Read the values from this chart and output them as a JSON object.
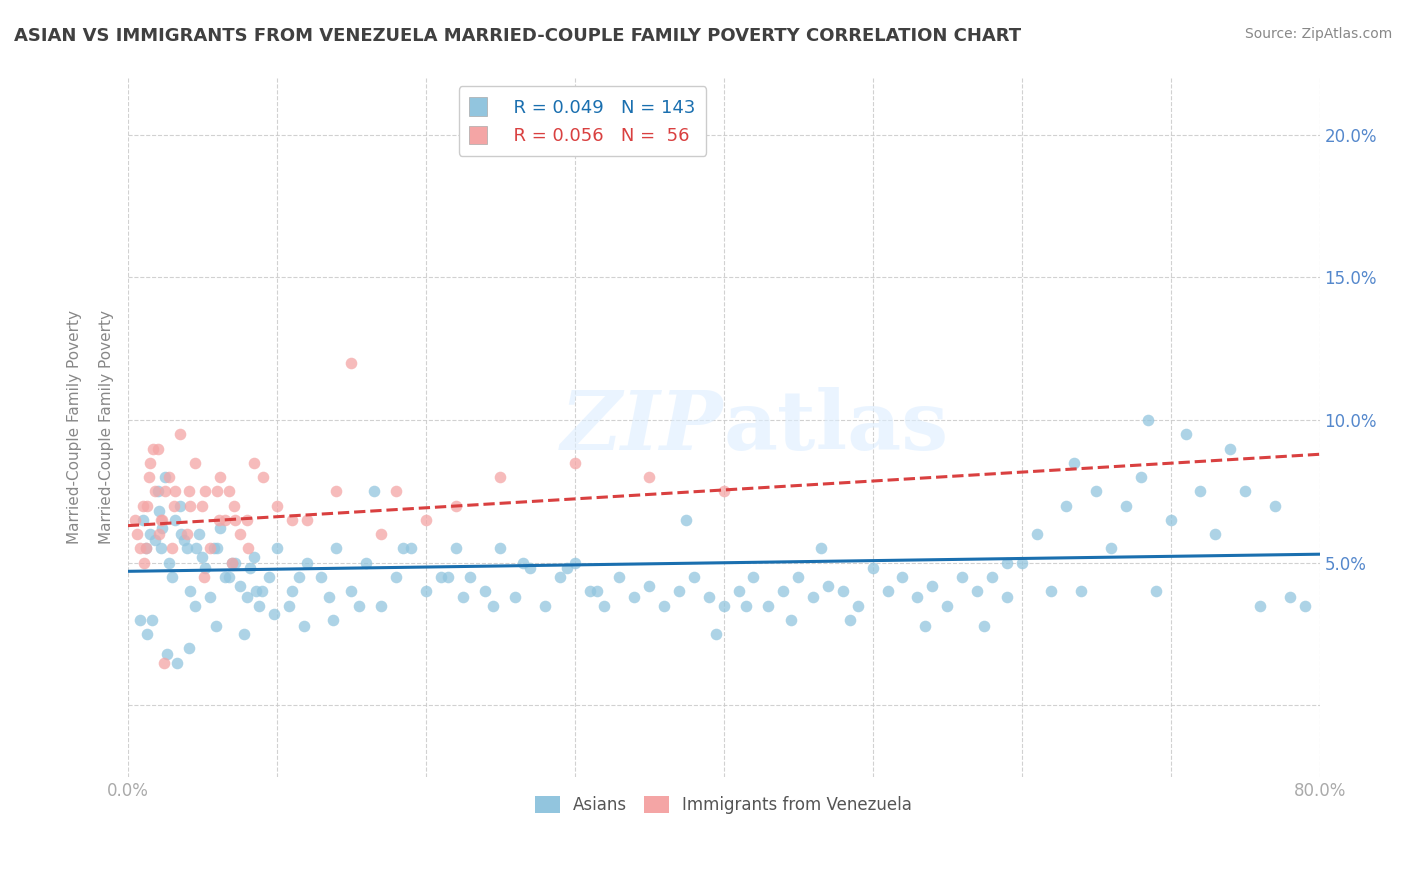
{
  "title": "ASIAN VS IMMIGRANTS FROM VENEZUELA MARRIED-COUPLE FAMILY POVERTY CORRELATION CHART",
  "source": "Source: ZipAtlas.com",
  "ylabel": "Married-Couple Family Poverty",
  "xlim": [
    0.0,
    80.0
  ],
  "ylim": [
    -2.5,
    22.0
  ],
  "yticks": [
    0.0,
    5.0,
    10.0,
    15.0,
    20.0
  ],
  "ytick_labels": [
    "",
    "5.0%",
    "10.0%",
    "15.0%",
    "20.0%"
  ],
  "xticks": [
    0.0,
    10.0,
    20.0,
    30.0,
    40.0,
    50.0,
    60.0,
    70.0,
    80.0
  ],
  "xtick_labels": [
    "0.0%",
    "",
    "",
    "",
    "",
    "",
    "",
    "",
    "80.0%"
  ],
  "legend_r1": "R = 0.049",
  "legend_n1": "N = 143",
  "legend_r2": "R = 0.056",
  "legend_n2": "N =  56",
  "blue_color": "#92c5de",
  "pink_color": "#f4a5a5",
  "trend_blue": "#1a6faf",
  "trend_pink": "#d94040",
  "title_color": "#404040",
  "background_color": "#ffffff",
  "grid_color": "#cccccc",
  "blue_scatter_x": [
    1.0,
    1.2,
    1.5,
    1.8,
    2.0,
    2.3,
    2.5,
    2.8,
    3.0,
    3.2,
    3.5,
    4.0,
    4.2,
    4.5,
    4.8,
    5.0,
    5.2,
    5.5,
    6.0,
    6.5,
    7.0,
    7.5,
    8.0,
    8.5,
    9.0,
    10.0,
    11.0,
    12.0,
    13.0,
    14.0,
    15.0,
    16.0,
    17.0,
    18.0,
    19.0,
    20.0,
    21.0,
    22.0,
    23.0,
    24.0,
    25.0,
    26.0,
    27.0,
    28.0,
    29.0,
    30.0,
    31.0,
    32.0,
    33.0,
    34.0,
    35.0,
    36.0,
    37.0,
    38.0,
    39.0,
    40.0,
    41.0,
    42.0,
    43.0,
    44.0,
    45.0,
    46.0,
    47.0,
    48.0,
    49.0,
    50.0,
    51.0,
    52.0,
    53.0,
    54.0,
    55.0,
    56.0,
    57.0,
    58.0,
    59.0,
    60.0,
    62.0,
    63.0,
    65.0,
    67.0,
    68.0,
    70.0,
    72.0,
    73.0,
    75.0,
    77.0,
    78.0,
    79.0,
    2.1,
    3.8,
    5.8,
    6.2,
    7.2,
    8.2,
    9.5,
    11.5,
    16.5,
    24.5,
    29.5,
    39.5,
    48.5,
    57.5,
    63.5,
    68.5,
    71.0,
    74.0,
    66.0,
    61.0,
    46.5,
    37.5,
    26.5,
    21.5,
    18.5,
    13.5,
    8.8,
    3.3,
    1.3,
    0.8,
    2.6,
    4.1,
    5.9,
    7.8,
    9.8,
    11.8,
    15.5,
    22.5,
    31.5,
    41.5,
    44.5,
    53.5,
    59.0,
    64.0,
    69.0,
    76.0,
    1.6,
    2.2,
    3.6,
    4.6,
    6.8,
    8.6,
    10.8,
    13.8,
    20.5,
    30.5
  ],
  "blue_scatter_y": [
    6.5,
    5.5,
    6.0,
    5.8,
    7.5,
    6.2,
    8.0,
    5.0,
    4.5,
    6.5,
    7.0,
    5.5,
    4.0,
    3.5,
    6.0,
    5.2,
    4.8,
    3.8,
    5.5,
    4.5,
    5.0,
    4.2,
    3.8,
    5.2,
    4.0,
    5.5,
    4.0,
    5.0,
    4.5,
    5.5,
    4.0,
    5.0,
    3.5,
    4.5,
    5.5,
    4.0,
    4.5,
    5.5,
    4.5,
    4.0,
    5.5,
    3.8,
    4.8,
    3.5,
    4.5,
    5.0,
    4.0,
    3.5,
    4.5,
    3.8,
    4.2,
    3.5,
    4.0,
    4.5,
    3.8,
    3.5,
    4.0,
    4.5,
    3.5,
    4.0,
    4.5,
    3.8,
    4.2,
    4.0,
    3.5,
    4.8,
    4.0,
    4.5,
    3.8,
    4.2,
    3.5,
    4.5,
    4.0,
    4.5,
    3.8,
    5.0,
    4.0,
    7.0,
    7.5,
    7.0,
    8.0,
    6.5,
    7.5,
    6.0,
    7.5,
    7.0,
    3.8,
    3.5,
    6.8,
    5.8,
    5.5,
    6.2,
    5.0,
    4.8,
    4.5,
    4.5,
    7.5,
    3.5,
    4.8,
    2.5,
    3.0,
    2.8,
    8.5,
    10.0,
    9.5,
    9.0,
    5.5,
    6.0,
    5.5,
    6.5,
    5.0,
    4.5,
    5.5,
    3.8,
    3.5,
    1.5,
    2.5,
    3.0,
    1.8,
    2.0,
    2.8,
    2.5,
    3.2,
    2.8,
    3.5,
    3.8,
    4.0,
    3.5,
    3.0,
    2.8,
    5.0,
    4.0,
    4.0,
    3.5,
    3.0,
    5.5,
    6.0,
    5.5,
    4.5,
    4.0,
    3.5,
    3.0
  ],
  "pink_scatter_x": [
    0.5,
    1.0,
    1.2,
    1.5,
    1.8,
    2.0,
    2.2,
    2.5,
    2.8,
    3.0,
    3.5,
    4.0,
    4.5,
    5.0,
    5.5,
    6.0,
    6.5,
    7.0,
    7.5,
    8.0,
    0.8,
    1.3,
    1.7,
    2.3,
    3.2,
    4.2,
    5.2,
    6.2,
    7.2,
    8.5,
    10.0,
    12.0,
    15.0,
    18.0,
    20.0,
    22.0,
    25.0,
    30.0,
    35.0,
    40.0,
    1.1,
    2.1,
    3.1,
    4.1,
    5.1,
    6.1,
    7.1,
    8.1,
    9.1,
    11.0,
    14.0,
    17.0,
    0.6,
    1.4,
    2.4,
    6.8
  ],
  "pink_scatter_y": [
    6.5,
    7.0,
    5.5,
    8.5,
    7.5,
    9.0,
    6.5,
    7.5,
    8.0,
    5.5,
    9.5,
    6.0,
    8.5,
    7.0,
    5.5,
    7.5,
    6.5,
    5.0,
    6.0,
    6.5,
    5.5,
    7.0,
    9.0,
    6.5,
    7.5,
    7.0,
    7.5,
    8.0,
    6.5,
    8.5,
    7.0,
    6.5,
    12.0,
    7.5,
    6.5,
    7.0,
    8.0,
    8.5,
    8.0,
    7.5,
    5.0,
    6.0,
    7.0,
    7.5,
    4.5,
    6.5,
    7.0,
    5.5,
    8.0,
    6.5,
    7.5,
    6.0,
    6.0,
    8.0,
    1.5,
    7.5
  ],
  "blue_trend_x": [
    0.0,
    80.0
  ],
  "blue_trend_y": [
    4.7,
    5.3
  ],
  "pink_trend_x": [
    0.0,
    80.0
  ],
  "pink_trend_y": [
    6.3,
    8.8
  ]
}
